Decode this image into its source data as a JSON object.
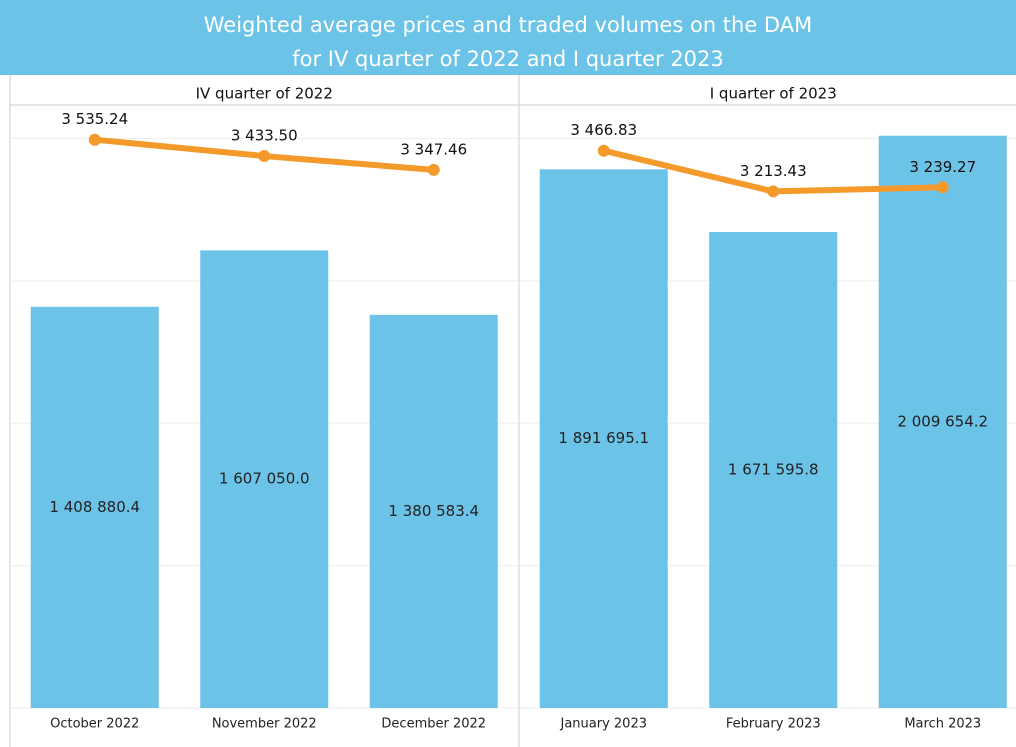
{
  "title": [
    "Weighted average prices and traded volumes on the DAM",
    "for IV quarter of 2022 and I quarter 2023"
  ],
  "chart_data": [
    {
      "type": "bar-line",
      "title": "IV quarter of 2022",
      "categories": [
        "October 2022",
        "November 2022",
        "December 2022"
      ],
      "series": [
        {
          "type": "bar",
          "color": "#6cc3e8",
          "values": [
            1408880.4,
            1607050.0,
            1380583.4
          ],
          "value_labels": [
            "1 408 880.4",
            "1 607 050.0",
            "1 380 583.4"
          ]
        },
        {
          "type": "line",
          "axis": "y2",
          "color": "#f39a2a",
          "values": [
            3535.24,
            3433.5,
            3347.46
          ],
          "value_labels": [
            "3 535.24",
            "3 433.50",
            "3 347.46"
          ]
        }
      ],
      "ylim": [
        0,
        2100000
      ],
      "yticks": [
        0,
        500000,
        1000000,
        1500000,
        2000000
      ],
      "y2lim": [
        0,
        3720
      ],
      "grid": true
    },
    {
      "type": "bar-line",
      "title": "I quarter of 2023",
      "categories": [
        "January 2023",
        "February 2023",
        "March 2023"
      ],
      "series": [
        {
          "type": "bar",
          "color": "#6cc3e8",
          "values": [
            1891695.1,
            1671595.8,
            2009654.2
          ],
          "value_labels": [
            "1 891 695.1",
            "1 671 595.8",
            "2 009 654.2"
          ]
        },
        {
          "type": "line",
          "axis": "y2",
          "color": "#f39a2a",
          "values": [
            3466.83,
            3213.43,
            3239.27
          ],
          "value_labels": [
            "3 466.83",
            "3 213.43",
            "3 239.27"
          ]
        }
      ],
      "ylim": [
        0,
        2100000
      ],
      "yticks": [
        0,
        500000,
        1000000,
        1500000,
        2000000
      ],
      "y2lim": [
        0,
        3720
      ],
      "grid": true
    }
  ]
}
